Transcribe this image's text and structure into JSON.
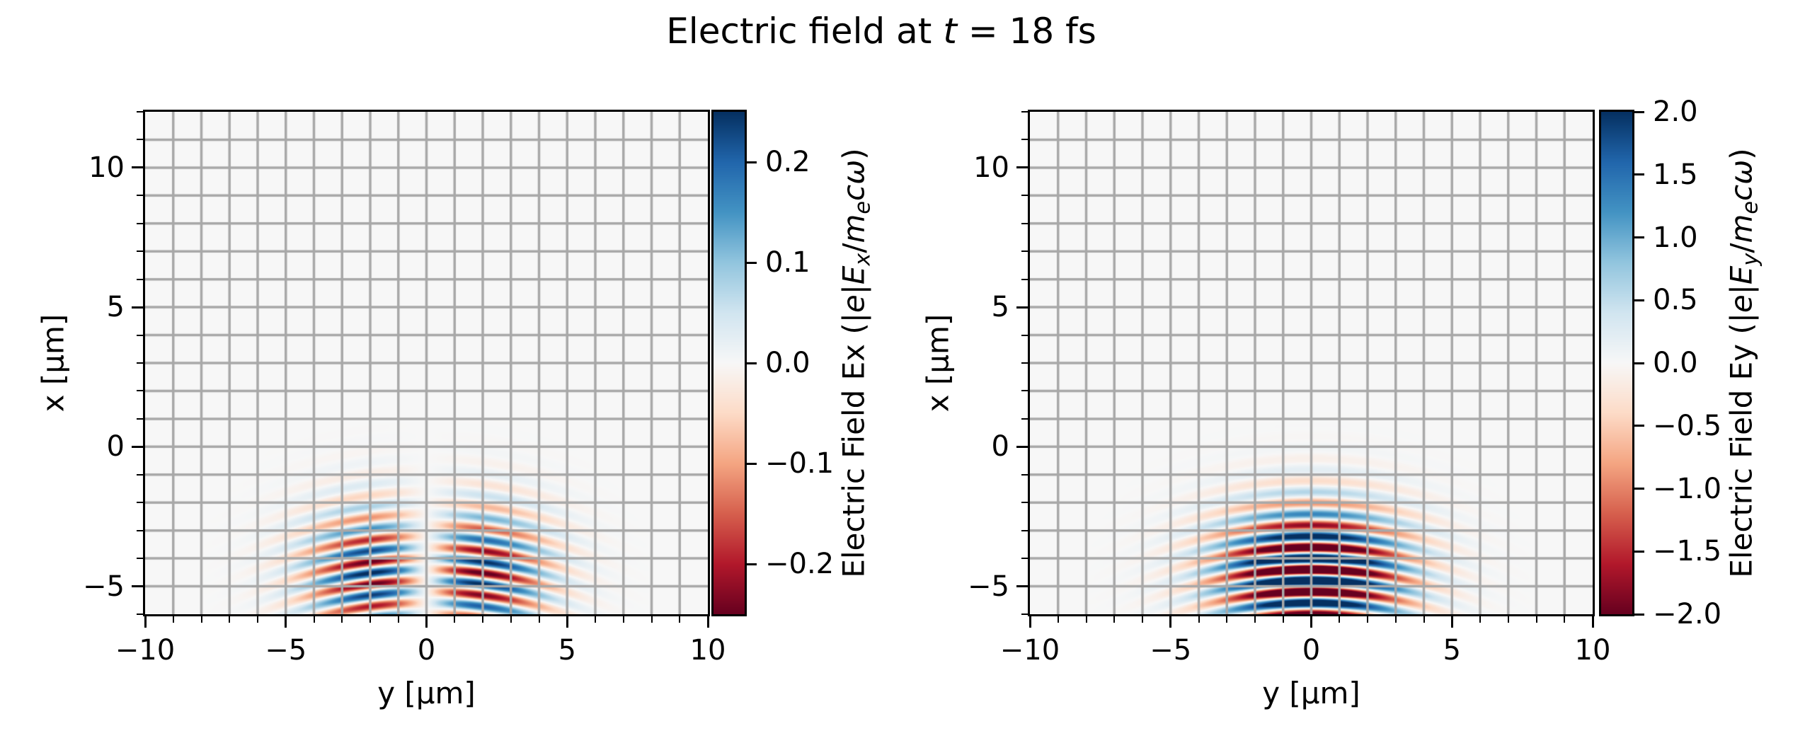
{
  "figure": {
    "title_runs": [
      {
        "text": "Electric field at "
      },
      {
        "text": "t",
        "italic": true
      },
      {
        "text": " = 18 fs"
      }
    ],
    "background": "#ffffff",
    "text_color": "#000000"
  },
  "chart_data": [
    {
      "type": "heatmap",
      "name": "electric-field-ex",
      "xlabel": "y [μm]",
      "ylabel": "x [μm]",
      "xlim": [
        -10,
        10
      ],
      "ylim": [
        -6,
        12
      ],
      "xticks": [
        -10,
        -5,
        0,
        5,
        10
      ],
      "xtick_labels": [
        "−10",
        "−5",
        "0",
        "5",
        "10"
      ],
      "yticks": [
        10,
        5,
        0,
        -5
      ],
      "ytick_labels": [
        "10",
        "5",
        "0",
        "−5"
      ],
      "minor_tick_step": 1,
      "grid": {
        "on": true,
        "step": 1,
        "color": "#a8a8a8",
        "width": 3.5
      },
      "colormap": "RdBu",
      "plot_bg": "#f7f7f7",
      "colorbar": {
        "vmin": -0.25,
        "vmax": 0.25,
        "ticks": [
          0.2,
          0.1,
          0.0,
          -0.1,
          -0.2
        ],
        "tick_labels": [
          "0.2",
          "0.1",
          "0.0",
          "−0.1",
          "−0.2"
        ],
        "label_runs": [
          {
            "text": "Electric Field Ex (|"
          },
          {
            "text": "e",
            "italic": true
          },
          {
            "text": "|"
          },
          {
            "text": "E",
            "italic": true
          },
          {
            "text": "x",
            "italic": true,
            "sub": true
          },
          {
            "text": "/"
          },
          {
            "text": "m",
            "italic": true
          },
          {
            "text": "e",
            "italic": true,
            "sub": true
          },
          {
            "text": "c",
            "italic": true
          },
          {
            "text": "ω",
            "italic": true
          },
          {
            "text": ")"
          }
        ]
      },
      "field_model": {
        "component": "Ex",
        "transverse_profile": "odd",
        "carrier_sign": 1,
        "amplitude": 0.43,
        "wavelength_um": 0.8,
        "pulse_center_x_um": -4.6,
        "sigma_x_um": 1.6,
        "sigma_y_um": 2.0,
        "wavefront_curvature_um_inv": 0.032,
        "phase_reference_x_um": -6
      }
    },
    {
      "type": "heatmap",
      "name": "electric-field-ey",
      "xlabel": "y [μm]",
      "ylabel": "x [μm]",
      "xlim": [
        -10,
        10
      ],
      "ylim": [
        -6,
        12
      ],
      "xticks": [
        -10,
        -5,
        0,
        5,
        10
      ],
      "xtick_labels": [
        "−10",
        "−5",
        "0",
        "5",
        "10"
      ],
      "yticks": [
        10,
        5,
        0,
        -5
      ],
      "ytick_labels": [
        "10",
        "5",
        "0",
        "−5"
      ],
      "minor_tick_step": 1,
      "grid": {
        "on": true,
        "step": 1,
        "color": "#a8a8a8",
        "width": 3.5
      },
      "colormap": "RdBu",
      "plot_bg": "#f7f7f7",
      "colorbar": {
        "vmin": -2.0,
        "vmax": 2.0,
        "ticks": [
          2.0,
          1.5,
          1.0,
          0.5,
          0.0,
          -0.5,
          -1.0,
          -1.5,
          -2.0
        ],
        "tick_labels": [
          "2.0",
          "1.5",
          "1.0",
          "0.5",
          "0.0",
          "−0.5",
          "−1.0",
          "−1.5",
          "−2.0"
        ],
        "label_runs": [
          {
            "text": "Electric Field Ey (|"
          },
          {
            "text": "e",
            "italic": true
          },
          {
            "text": "|"
          },
          {
            "text": "E",
            "italic": true
          },
          {
            "text": "y",
            "italic": true,
            "sub": true
          },
          {
            "text": "/"
          },
          {
            "text": "m",
            "italic": true
          },
          {
            "text": "e",
            "italic": true,
            "sub": true
          },
          {
            "text": "c",
            "italic": true
          },
          {
            "text": "ω",
            "italic": true
          },
          {
            "text": ")"
          }
        ]
      },
      "field_model": {
        "component": "Ey",
        "transverse_profile": "even",
        "carrier_sign": -1,
        "amplitude": 3.4,
        "wavelength_um": 0.8,
        "pulse_center_x_um": -4.6,
        "sigma_x_um": 1.6,
        "sigma_y_um": 2.2,
        "wavefront_curvature_um_inv": 0.032,
        "phase_reference_x_um": -6
      }
    }
  ],
  "colormap_rdbu": [
    "#67001f",
    "#b2182b",
    "#d6604d",
    "#f4a582",
    "#fddbc7",
    "#f7f7f7",
    "#d1e5f0",
    "#92c5de",
    "#4393c3",
    "#2166ac",
    "#053061"
  ]
}
